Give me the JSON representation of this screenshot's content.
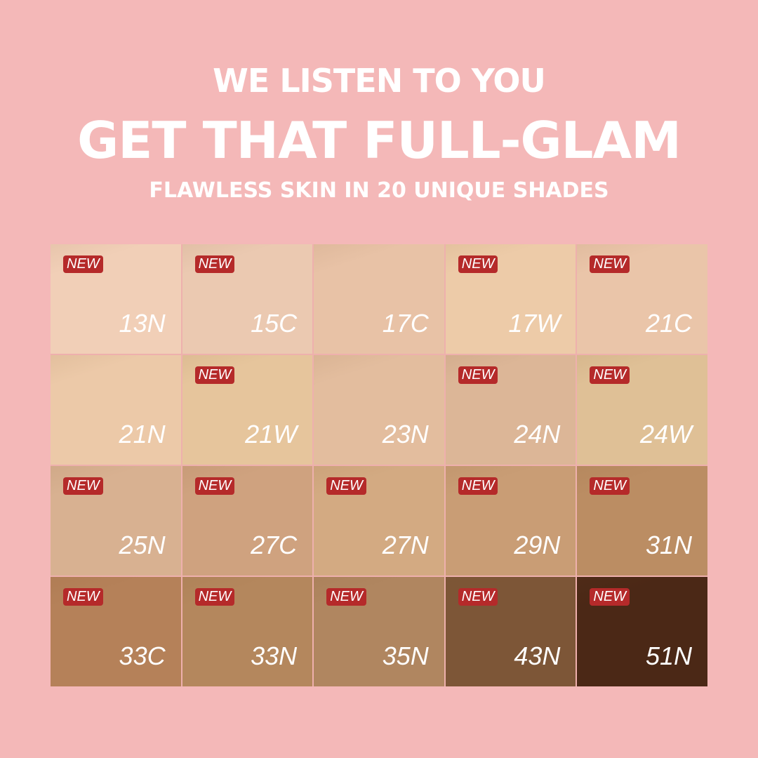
{
  "header": {
    "line1": "WE LISTEN TO YOU",
    "line2": "GET THAT FULL-GLAM",
    "line3": "FLAWLESS SKIN IN 20 UNIQUE SHADES"
  },
  "badge_label": "NEW",
  "colors": {
    "background": "#f4b8b8",
    "badge": "#b52a2a"
  },
  "shades": [
    {
      "name": "13N",
      "new": true,
      "color": "#f1cfb7"
    },
    {
      "name": "15C",
      "new": true,
      "color": "#ebc9b1"
    },
    {
      "name": "17C",
      "new": false,
      "color": "#e8c2a6"
    },
    {
      "name": "17W",
      "new": true,
      "color": "#edcba8"
    },
    {
      "name": "21C",
      "new": true,
      "color": "#eac5a9"
    },
    {
      "name": "21N",
      "new": false,
      "color": "#ecc9a8"
    },
    {
      "name": "21W",
      "new": true,
      "color": "#e6c59c"
    },
    {
      "name": "23N",
      "new": false,
      "color": "#e3bd9e"
    },
    {
      "name": "24N",
      "new": true,
      "color": "#dcb697"
    },
    {
      "name": "24W",
      "new": true,
      "color": "#dfc096"
    },
    {
      "name": "25N",
      "new": true,
      "color": "#d8b191"
    },
    {
      "name": "27C",
      "new": true,
      "color": "#cfa27f"
    },
    {
      "name": "27N",
      "new": true,
      "color": "#d3aa82"
    },
    {
      "name": "29N",
      "new": true,
      "color": "#c99d75"
    },
    {
      "name": "31N",
      "new": true,
      "color": "#bb8d63"
    },
    {
      "name": "33C",
      "new": true,
      "color": "#b58159"
    },
    {
      "name": "33N",
      "new": true,
      "color": "#b4875d"
    },
    {
      "name": "35N",
      "new": true,
      "color": "#b08660"
    },
    {
      "name": "43N",
      "new": true,
      "color": "#7d5637"
    },
    {
      "name": "51N",
      "new": true,
      "color": "#4b2816"
    }
  ]
}
